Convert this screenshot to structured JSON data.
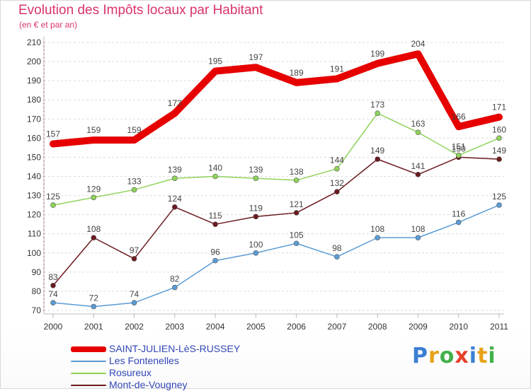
{
  "header": {
    "title": "Evolution des Impôts locaux par Habitant",
    "subtitle": "(en € et par an)"
  },
  "logo": {
    "letters": [
      "P",
      "r",
      "o",
      "x",
      "i",
      "t",
      "i"
    ],
    "colors": [
      "#3b7fd4",
      "#e8a21a",
      "#43b04a",
      "#e8402b",
      "#3b7fd4",
      "#e8a21a",
      "#43b04a"
    ]
  },
  "chart_data": {
    "type": "line",
    "x": [
      "2000",
      "2001",
      "2002",
      "2003",
      "2004",
      "2005",
      "2006",
      "2007",
      "2008",
      "2009",
      "2010",
      "2011"
    ],
    "ylim": [
      70,
      210
    ],
    "yticks": [
      70,
      80,
      90,
      100,
      110,
      120,
      130,
      140,
      150,
      160,
      170,
      180,
      190,
      200,
      210
    ],
    "grid": "horizontal dashed",
    "legend": "bottom-left",
    "series": [
      {
        "name": "Mont-de-Vougney",
        "color": "#6b1a1e",
        "values": [
          83,
          108,
          97,
          124,
          115,
          119,
          121,
          132,
          149,
          141,
          150,
          149
        ],
        "labels": [
          "83",
          "108",
          "97",
          "124",
          "115",
          "119",
          "121",
          "132",
          "149",
          "141",
          "150",
          "149"
        ]
      },
      {
        "name": "Les Fontenelles",
        "color": "#5b9bd5",
        "values": [
          74,
          72,
          74,
          82,
          96,
          100,
          105,
          98,
          108,
          108,
          116,
          125
        ],
        "labels": [
          "74",
          "72",
          "74",
          "82",
          "96",
          "100",
          "105",
          "98",
          "108",
          "108",
          "116",
          "125"
        ]
      },
      {
        "name": "Rosureux",
        "color": "#8fd35a",
        "values": [
          125,
          129,
          133,
          139,
          140,
          139,
          138,
          144,
          173,
          163,
          151,
          160
        ],
        "labels": [
          "125",
          "129",
          "133",
          "139",
          "140",
          "139",
          "138",
          "144",
          "173",
          "163",
          "151",
          "160"
        ]
      },
      {
        "name": "SAINT-JULIEN-LèS-RUSSEY",
        "color": "#e60000",
        "values": [
          157,
          159,
          159,
          173,
          195,
          197,
          189,
          191,
          199,
          204,
          166,
          171
        ],
        "labels": [
          "157",
          "159",
          "159",
          "173",
          "195",
          "197",
          "189",
          "191",
          "199",
          "204",
          "166",
          "171"
        ]
      }
    ]
  },
  "legend_items": [
    {
      "label": "SAINT-JULIEN-LèS-RUSSEY",
      "color": "#e60000"
    },
    {
      "label": "Les Fontenelles",
      "color": "#5b9bd5"
    },
    {
      "label": "Rosureux",
      "color": "#8fd35a"
    },
    {
      "label": "Mont-de-Vougney",
      "color": "#6b1a1e"
    }
  ]
}
